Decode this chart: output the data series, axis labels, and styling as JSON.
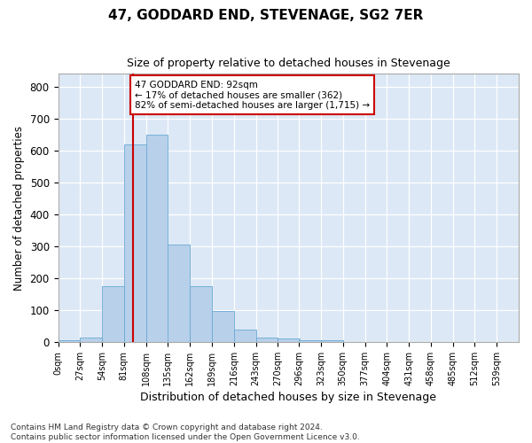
{
  "title": "47, GODDARD END, STEVENAGE, SG2 7ER",
  "subtitle": "Size of property relative to detached houses in Stevenage",
  "xlabel": "Distribution of detached houses by size in Stevenage",
  "ylabel": "Number of detached properties",
  "bar_color": "#b8d0ea",
  "bar_edge_color": "#6aaad4",
  "background_color": "#dce8f5",
  "grid_color": "#ffffff",
  "annotation_line_color": "#cc0000",
  "annotation_box_color": "#cc0000",
  "annotation_text": "47 GODDARD END: 92sqm\n← 17% of detached houses are smaller (362)\n82% of semi-detached houses are larger (1,715) →",
  "property_size_sqm": 92,
  "bin_starts": [
    0,
    27,
    54,
    81,
    108,
    135,
    162,
    189,
    216,
    243,
    270,
    296,
    323,
    350,
    377,
    404,
    431,
    458,
    485,
    512
  ],
  "bin_width": 27,
  "bin_labels": [
    "0sqm",
    "27sqm",
    "54sqm",
    "81sqm",
    "108sqm",
    "135sqm",
    "162sqm",
    "189sqm",
    "216sqm",
    "243sqm",
    "270sqm",
    "296sqm",
    "323sqm",
    "350sqm",
    "377sqm",
    "404sqm",
    "431sqm",
    "458sqm",
    "485sqm",
    "512sqm",
    "539sqm"
  ],
  "bar_heights": [
    5,
    15,
    175,
    620,
    650,
    305,
    175,
    98,
    38,
    15,
    10,
    5,
    5,
    1,
    0,
    0,
    0,
    0,
    0,
    0
  ],
  "ylim": [
    0,
    840
  ],
  "yticks": [
    0,
    100,
    200,
    300,
    400,
    500,
    600,
    700,
    800
  ],
  "fig_width": 6.0,
  "fig_height": 5.0,
  "footnote": "Contains HM Land Registry data © Crown copyright and database right 2024.\nContains public sector information licensed under the Open Government Licence v3.0."
}
